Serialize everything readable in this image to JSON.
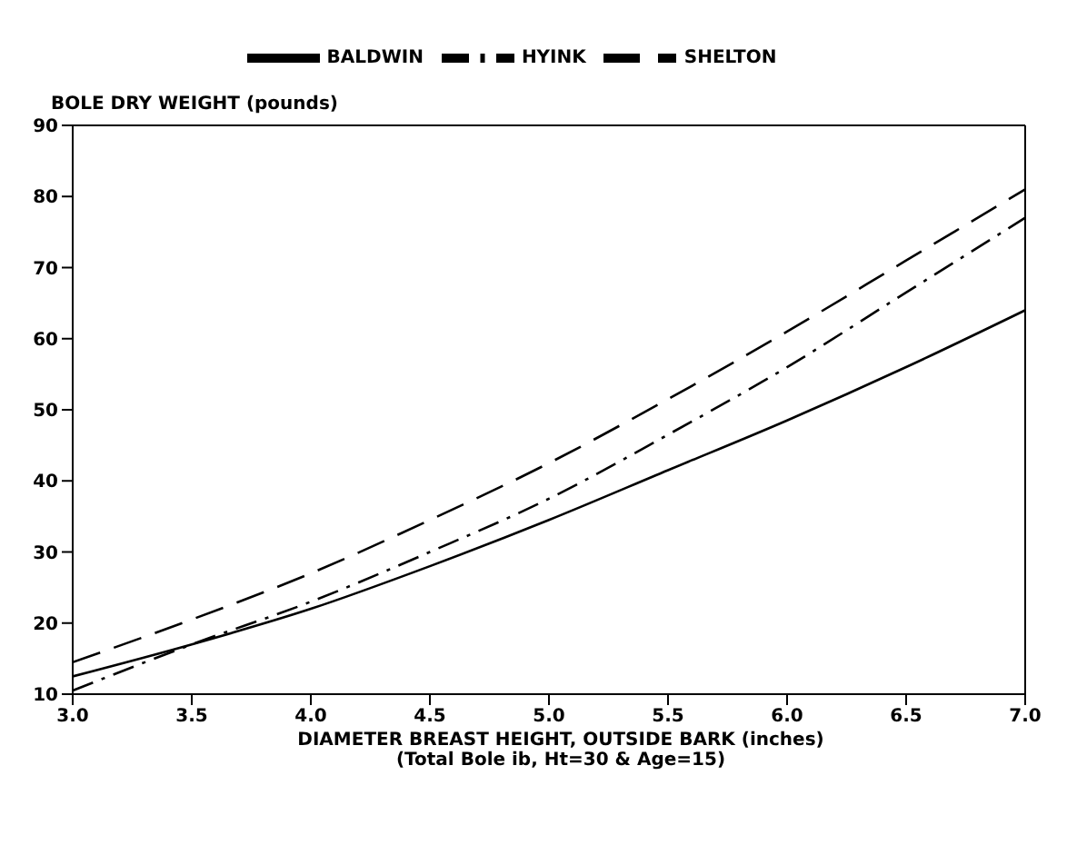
{
  "chart_data": {
    "type": "line",
    "ylabel": "BOLE DRY WEIGHT (pounds)",
    "xlabel": "DIAMETER BREAST HEIGHT, OUTSIDE BARK (inches)",
    "annotations": [
      "(Total Bole ib, Ht=30 & Age=15)"
    ],
    "x": [
      3.0,
      3.5,
      4.0,
      4.5,
      5.0,
      5.5,
      6.0,
      6.5,
      7.0
    ],
    "series": [
      {
        "name": "BALDWIN",
        "color": "#000000",
        "line_style": "solid",
        "values": [
          12.5,
          17,
          22,
          28,
          34.5,
          41.5,
          48.5,
          56,
          64
        ]
      },
      {
        "name": "SHELTON",
        "color": "#000000",
        "line_style": "dashed",
        "values": [
          14.5,
          20.5,
          27,
          34.5,
          42.5,
          51.5,
          61,
          71,
          81
        ]
      },
      {
        "name": "HYINK",
        "color": "#000000",
        "line_style": "dashdot",
        "values": [
          10.5,
          17,
          23,
          30,
          37.5,
          46.5,
          56,
          66.5,
          77
        ]
      }
    ],
    "xlim": [
      3,
      7
    ],
    "xticks": [
      {
        "value": 3,
        "label": "3.0"
      },
      3.5,
      {
        "value": 4,
        "label": "4.0"
      },
      4.5,
      {
        "value": 5,
        "label": "5.0"
      },
      5.5,
      {
        "value": 6,
        "label": "6.0"
      },
      6.5,
      {
        "value": 7,
        "label": "7.0"
      }
    ],
    "ylim": [
      10,
      90
    ],
    "yticks": [
      10,
      20,
      30,
      40,
      50,
      60,
      70,
      80,
      90
    ],
    "grid": false,
    "legend": "top",
    "marker": "none"
  }
}
